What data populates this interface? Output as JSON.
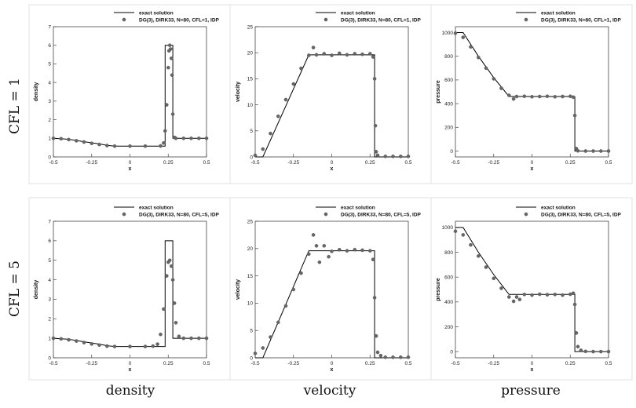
{
  "row_labels": [
    "CFL = 1",
    "CFL = 5"
  ],
  "col_labels": [
    "density",
    "velocity",
    "pressure"
  ],
  "chart_data": [
    {
      "type": "line",
      "row": 0,
      "col": 0,
      "ylabel": "density",
      "xlabel": "x",
      "xlim": [
        -0.5,
        0.5
      ],
      "ylim": [
        0,
        7
      ],
      "xticks": [
        "-0.5",
        "-0.25",
        "0",
        "0.25",
        "0.5"
      ],
      "yticks": [
        "0",
        "1",
        "2",
        "3",
        "4",
        "5",
        "6",
        "7"
      ],
      "legend": [
        "exact solution",
        "DG(3), DIRK33, N=80, CFL=1, IDP"
      ],
      "series": [
        {
          "name": "exact solution",
          "x": [
            -0.5,
            -0.4,
            -0.3,
            -0.2,
            -0.15,
            -0.1,
            0.23,
            0.23,
            0.28,
            0.28,
            0.5
          ],
          "y": [
            1.0,
            0.95,
            0.82,
            0.7,
            0.62,
            0.58,
            0.58,
            6.0,
            6.0,
            1.0,
            1.0
          ]
        },
        {
          "name": "DG(3), DIRK33, N=80, CFL=1, IDP",
          "x": [
            -0.5,
            -0.45,
            -0.4,
            -0.35,
            -0.3,
            -0.25,
            -0.2,
            -0.15,
            -0.1,
            0.0,
            0.1,
            0.2,
            0.22,
            0.23,
            0.24,
            0.25,
            0.255,
            0.26,
            0.265,
            0.27,
            0.275,
            0.28,
            0.29,
            0.3,
            0.35,
            0.4,
            0.45,
            0.5
          ],
          "y": [
            1.0,
            0.98,
            0.93,
            0.87,
            0.8,
            0.73,
            0.67,
            0.61,
            0.58,
            0.58,
            0.58,
            0.59,
            0.75,
            1.4,
            2.8,
            4.8,
            5.7,
            6.0,
            5.8,
            5.3,
            4.4,
            2.3,
            1.05,
            1.0,
            1.0,
            1.0,
            1.0,
            1.0
          ]
        }
      ]
    },
    {
      "type": "line",
      "row": 0,
      "col": 1,
      "ylabel": "velocity",
      "xlabel": "x",
      "xlim": [
        -0.5,
        0.5
      ],
      "ylim": [
        0,
        25
      ],
      "xticks": [
        "-0.5",
        "-0.25",
        "0",
        "0.25",
        "0.5"
      ],
      "yticks": [
        "0",
        "5",
        "10",
        "15",
        "20",
        "25"
      ],
      "legend": [
        "exact solution",
        "DG(3), DIRK33, N=80, CFL=1, IDP"
      ],
      "series": [
        {
          "name": "exact solution",
          "x": [
            -0.5,
            -0.45,
            -0.15,
            0.28,
            0.28,
            0.5
          ],
          "y": [
            0,
            0,
            19.6,
            19.6,
            0,
            0
          ]
        },
        {
          "name": "DG(3), DIRK33, N=80, CFL=1, IDP",
          "x": [
            -0.5,
            -0.45,
            -0.4,
            -0.35,
            -0.3,
            -0.25,
            -0.2,
            -0.15,
            -0.12,
            -0.1,
            -0.05,
            0.0,
            0.05,
            0.1,
            0.15,
            0.2,
            0.25,
            0.27,
            0.28,
            0.285,
            0.29,
            0.3,
            0.35,
            0.4,
            0.45,
            0.5
          ],
          "y": [
            0.3,
            1.5,
            4.5,
            7.8,
            11.0,
            14.0,
            17.0,
            19.5,
            21.0,
            19.6,
            19.8,
            19.5,
            19.9,
            19.6,
            19.8,
            19.7,
            19.8,
            19.2,
            15.0,
            6.0,
            1.0,
            0.3,
            0.1,
            0.1,
            0.1,
            0.1
          ]
        }
      ]
    },
    {
      "type": "line",
      "row": 0,
      "col": 2,
      "ylabel": "pressure",
      "xlabel": "x",
      "xlim": [
        -0.5,
        0.5
      ],
      "ylim": [
        -50,
        1050
      ],
      "xticks": [
        "-0.5",
        "-0.25",
        "0",
        "0.25",
        "0.5"
      ],
      "yticks": [
        "0",
        "200",
        "400",
        "600",
        "800",
        "1000"
      ],
      "legend": [
        "exact solution",
        "DG(3), DIRK33, N=80, CFL=1, IDP"
      ],
      "series": [
        {
          "name": "exact solution",
          "x": [
            -0.5,
            -0.45,
            -0.35,
            -0.25,
            -0.15,
            0.28,
            0.28,
            0.5
          ],
          "y": [
            1000,
            1000,
            800,
            620,
            460,
            460,
            0,
            0
          ]
        },
        {
          "name": "DG(3), DIRK33, N=80, CFL=1, IDP",
          "x": [
            -0.5,
            -0.45,
            -0.4,
            -0.35,
            -0.3,
            -0.25,
            -0.2,
            -0.15,
            -0.12,
            -0.1,
            -0.05,
            0.0,
            0.05,
            0.1,
            0.15,
            0.2,
            0.25,
            0.27,
            0.28,
            0.29,
            0.3,
            0.35,
            0.4,
            0.45,
            0.5
          ],
          "y": [
            995,
            960,
            880,
            790,
            700,
            610,
            530,
            470,
            440,
            460,
            462,
            458,
            460,
            462,
            458,
            460,
            462,
            455,
            300,
            20,
            2,
            0,
            0,
            0,
            0
          ]
        }
      ]
    },
    {
      "type": "line",
      "row": 1,
      "col": 0,
      "ylabel": "density",
      "xlabel": "x",
      "xlim": [
        -0.5,
        0.5
      ],
      "ylim": [
        0,
        7
      ],
      "xticks": [
        "-0.5",
        "-0.25",
        "0",
        "0.25",
        "0.5"
      ],
      "yticks": [
        "0",
        "1",
        "2",
        "3",
        "4",
        "5",
        "6",
        "7"
      ],
      "legend": [
        "exact solution",
        "DG(3), DIRK33, N=80, CFL=5, IDP"
      ],
      "series": [
        {
          "name": "exact solution",
          "x": [
            -0.5,
            -0.4,
            -0.3,
            -0.2,
            -0.15,
            -0.1,
            0.23,
            0.23,
            0.28,
            0.28,
            0.5
          ],
          "y": [
            1.0,
            0.95,
            0.82,
            0.7,
            0.62,
            0.58,
            0.58,
            6.0,
            6.0,
            1.0,
            1.0
          ]
        },
        {
          "name": "DG(3), DIRK33, N=80, CFL=5, IDP",
          "x": [
            -0.5,
            -0.45,
            -0.4,
            -0.35,
            -0.3,
            -0.25,
            -0.2,
            -0.15,
            -0.1,
            0.0,
            0.1,
            0.15,
            0.18,
            0.2,
            0.22,
            0.24,
            0.25,
            0.26,
            0.27,
            0.28,
            0.29,
            0.3,
            0.32,
            0.35,
            0.4,
            0.45,
            0.5
          ],
          "y": [
            1.0,
            0.97,
            0.92,
            0.86,
            0.78,
            0.71,
            0.65,
            0.6,
            0.58,
            0.58,
            0.58,
            0.6,
            0.7,
            1.2,
            2.5,
            4.2,
            4.9,
            5.0,
            4.7,
            4.0,
            2.8,
            1.8,
            1.1,
            1.0,
            1.0,
            1.0,
            1.0
          ]
        }
      ]
    },
    {
      "type": "line",
      "row": 1,
      "col": 1,
      "ylabel": "velocity",
      "xlabel": "x",
      "xlim": [
        -0.5,
        0.5
      ],
      "ylim": [
        0,
        25
      ],
      "xticks": [
        "-0.5",
        "-0.25",
        "0",
        "0.25",
        "0.5"
      ],
      "yticks": [
        "0",
        "5",
        "10",
        "15",
        "20",
        "25"
      ],
      "legend": [
        "exact solution",
        "DG(3), DIRK33, N=80, CFL=5, IDP"
      ],
      "series": [
        {
          "name": "exact solution",
          "x": [
            -0.5,
            -0.45,
            -0.15,
            0.28,
            0.28,
            0.5
          ],
          "y": [
            0,
            0,
            19.6,
            19.6,
            0,
            0
          ]
        },
        {
          "name": "DG(3), DIRK33, N=80, CFL=5, IDP",
          "x": [
            -0.5,
            -0.45,
            -0.4,
            -0.35,
            -0.3,
            -0.25,
            -0.2,
            -0.15,
            -0.12,
            -0.1,
            -0.08,
            -0.05,
            -0.02,
            0.0,
            0.05,
            0.1,
            0.15,
            0.2,
            0.25,
            0.27,
            0.28,
            0.29,
            0.3,
            0.32,
            0.35,
            0.4,
            0.45,
            0.5
          ],
          "y": [
            0.8,
            1.8,
            3.8,
            6.5,
            9.5,
            12.5,
            15.5,
            19.0,
            22.5,
            20.5,
            17.5,
            20.5,
            18.5,
            19.5,
            19.8,
            19.6,
            19.8,
            19.7,
            19.6,
            18.0,
            11.0,
            4.0,
            1.0,
            0.4,
            0.1,
            0.1,
            0.1,
            0.1
          ]
        }
      ]
    },
    {
      "type": "line",
      "row": 1,
      "col": 2,
      "ylabel": "pressure",
      "xlabel": "x",
      "xlim": [
        -0.5,
        0.5
      ],
      "ylim": [
        -50,
        1050
      ],
      "xticks": [
        "-0.5",
        "-0.25",
        "0",
        "0.25",
        "0.5"
      ],
      "yticks": [
        "0",
        "200",
        "400",
        "600",
        "800",
        "1000"
      ],
      "legend": [
        "exact solution",
        "DG(3), DIRK33, N=80, CFL=5, IDP"
      ],
      "series": [
        {
          "name": "exact solution",
          "x": [
            -0.5,
            -0.45,
            -0.35,
            -0.25,
            -0.15,
            0.28,
            0.28,
            0.5
          ],
          "y": [
            1000,
            1000,
            800,
            620,
            460,
            460,
            0,
            0
          ]
        },
        {
          "name": "DG(3), DIRK33, N=80, CFL=5, IDP",
          "x": [
            -0.5,
            -0.45,
            -0.4,
            -0.35,
            -0.3,
            -0.25,
            -0.2,
            -0.15,
            -0.12,
            -0.1,
            -0.08,
            -0.05,
            0.0,
            0.05,
            0.1,
            0.15,
            0.2,
            0.25,
            0.27,
            0.28,
            0.29,
            0.3,
            0.32,
            0.35,
            0.4,
            0.45,
            0.5
          ],
          "y": [
            970,
            940,
            860,
            770,
            680,
            590,
            510,
            440,
            405,
            440,
            420,
            460,
            455,
            462,
            458,
            460,
            455,
            462,
            470,
            380,
            150,
            40,
            10,
            2,
            0,
            0,
            0
          ]
        }
      ]
    }
  ]
}
